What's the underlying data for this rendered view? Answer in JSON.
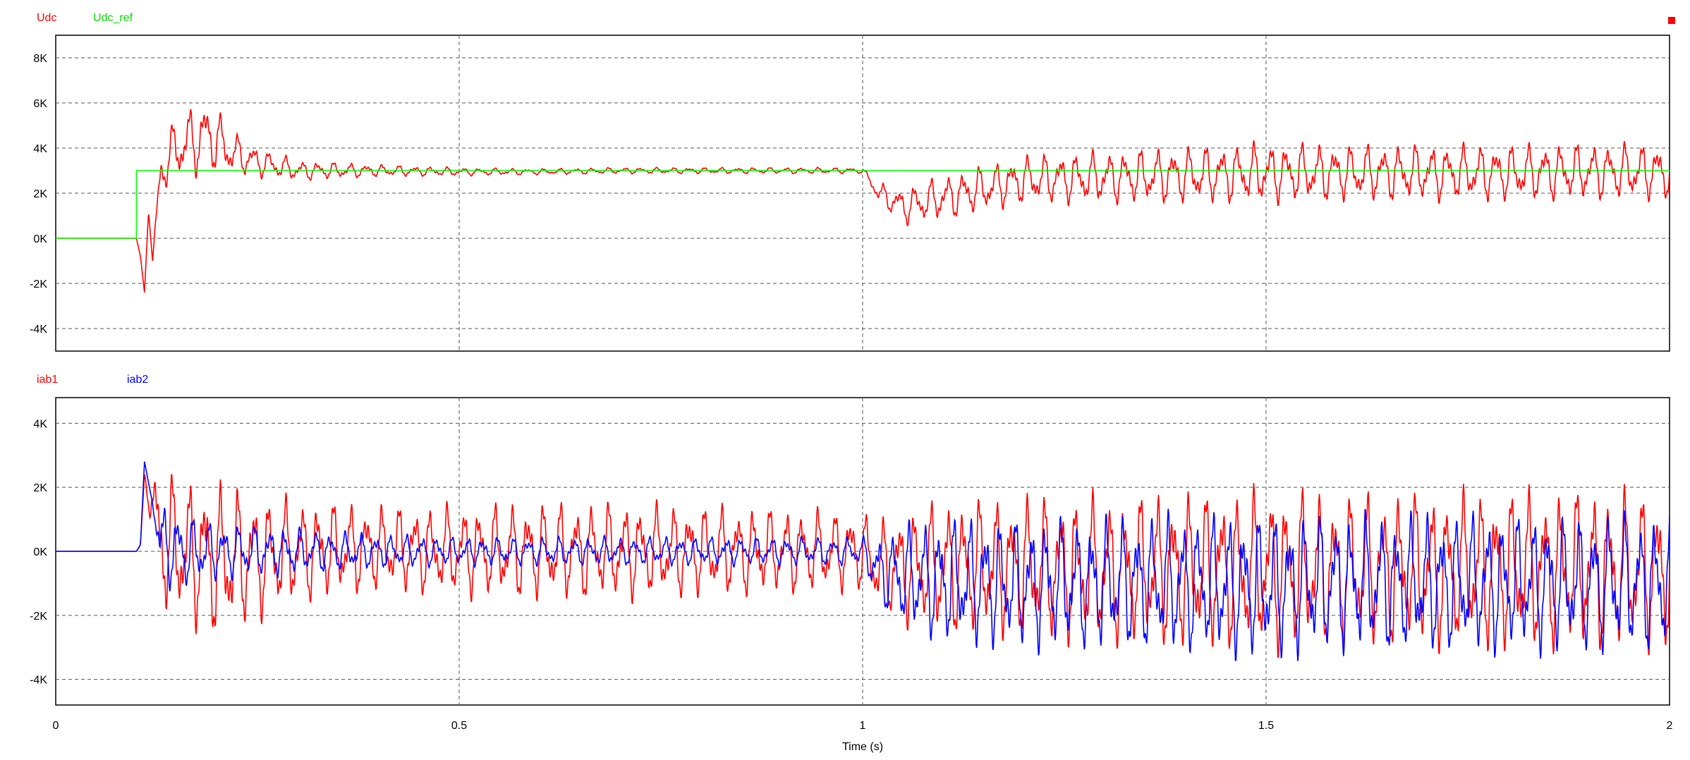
{
  "chart_data": [
    {
      "type": "line",
      "series": [
        {
          "name": "Udc",
          "color": "#ff0000",
          "x": [
            0,
            0.1,
            0.105,
            0.11,
            0.115,
            0.12,
            0.13,
            0.15,
            0.17,
            0.19,
            0.21,
            0.23,
            0.26,
            0.3,
            0.4,
            0.5,
            0.6,
            0.7,
            0.8,
            0.9,
            1.0,
            1.02,
            1.05,
            1.1,
            1.2,
            1.3,
            1.4,
            1.5,
            1.6,
            1.7,
            1.8,
            1.9,
            2.0
          ],
          "y": [
            0,
            0,
            -800,
            -2400,
            1200,
            -1000,
            3000,
            4000,
            4300,
            4600,
            4000,
            3600,
            3300,
            3000,
            3000,
            2950,
            2950,
            3000,
            3000,
            3000,
            3000,
            2000,
            1400,
            1800,
            2600,
            2700,
            2800,
            2900,
            2900,
            2900,
            2900,
            2950,
            2950
          ],
          "ripple": [
            0,
            0,
            0,
            0,
            0,
            0,
            1200,
            1600,
            1800,
            1800,
            1400,
            900,
            700,
            500,
            300,
            200,
            150,
            150,
            150,
            150,
            150,
            500,
            900,
            1100,
            1200,
            1300,
            1400,
            1500,
            1400,
            1400,
            1400,
            1400,
            1400
          ]
        },
        {
          "name": "Udc_ref",
          "color": "#00ff00",
          "x": [
            0,
            0.1,
            0.1,
            2.0
          ],
          "y": [
            0,
            0,
            3000,
            3000
          ]
        }
      ],
      "ylim": [
        -5000,
        9000
      ],
      "yticks": [
        8000,
        6000,
        4000,
        2000,
        0,
        -2000,
        -4000
      ],
      "ytick_labels": [
        "8K",
        "6K",
        "4K",
        "2K",
        "0K",
        "-2K",
        "-4K"
      ],
      "xlim": [
        0,
        2
      ],
      "grid": true
    },
    {
      "type": "line",
      "series": [
        {
          "name": "iab1",
          "color": "#ff0000",
          "x": [
            0,
            0.1,
            0.105,
            0.11,
            0.13,
            0.16,
            0.2,
            0.25,
            0.3,
            0.4,
            0.5,
            0.6,
            0.7,
            0.8,
            0.9,
            1.0,
            1.02,
            1.05,
            1.1,
            1.2,
            1.3,
            1.4,
            1.5,
            1.6,
            1.7,
            1.8,
            1.9,
            2.0
          ],
          "y": [
            0,
            0,
            200,
            2400,
            300,
            0,
            -300,
            -200,
            0,
            100,
            0,
            0,
            0,
            0,
            0,
            0,
            -500,
            -500,
            -500,
            -500,
            -600,
            -600,
            -600,
            -600,
            -600,
            -600,
            -600,
            -600
          ],
          "ripple": [
            0,
            0,
            0,
            0,
            2500,
            2500,
            2800,
            2200,
            1800,
            1500,
            1600,
            1700,
            1700,
            1600,
            1500,
            1400,
            1600,
            2000,
            2300,
            2500,
            2600,
            2700,
            2800,
            2700,
            2700,
            2800,
            2800,
            2800
          ]
        },
        {
          "name": "iab2",
          "color": "#0000ff",
          "x": [
            0,
            0.1,
            0.105,
            0.11,
            0.12,
            0.13,
            0.16,
            0.2,
            0.25,
            0.3,
            0.4,
            0.5,
            0.6,
            0.7,
            0.8,
            0.9,
            1.0,
            1.02,
            1.05,
            1.1,
            1.2,
            1.3,
            1.4,
            1.5,
            1.6,
            1.7,
            1.8,
            1.9,
            2.0
          ],
          "y": [
            0,
            0,
            200,
            2800,
            1500,
            200,
            0,
            0,
            0,
            0,
            0,
            0,
            0,
            0,
            0,
            0,
            0,
            -600,
            -800,
            -900,
            -1000,
            -1000,
            -1000,
            -1100,
            -1000,
            -1000,
            -1000,
            -1000,
            -1000
          ],
          "ripple": [
            0,
            0,
            0,
            0,
            0,
            1500,
            1300,
            1000,
            900,
            800,
            600,
            500,
            500,
            500,
            500,
            500,
            500,
            1200,
            1800,
            2200,
            2300,
            2300,
            2400,
            2500,
            2400,
            2400,
            2400,
            2400,
            2400
          ]
        }
      ],
      "ylim": [
        -4800,
        4800
      ],
      "yticks": [
        4000,
        2000,
        0,
        -2000,
        -4000
      ],
      "ytick_labels": [
        "4K",
        "2K",
        "0K",
        "-2K",
        "-4K"
      ],
      "xlim": [
        0,
        2
      ],
      "xticks": [
        0,
        0.5,
        1,
        1.5,
        2
      ],
      "xtick_labels": [
        "0",
        "0.5",
        "1",
        "1.5",
        "2"
      ],
      "xlabel": "Time (s)",
      "grid": true
    }
  ]
}
